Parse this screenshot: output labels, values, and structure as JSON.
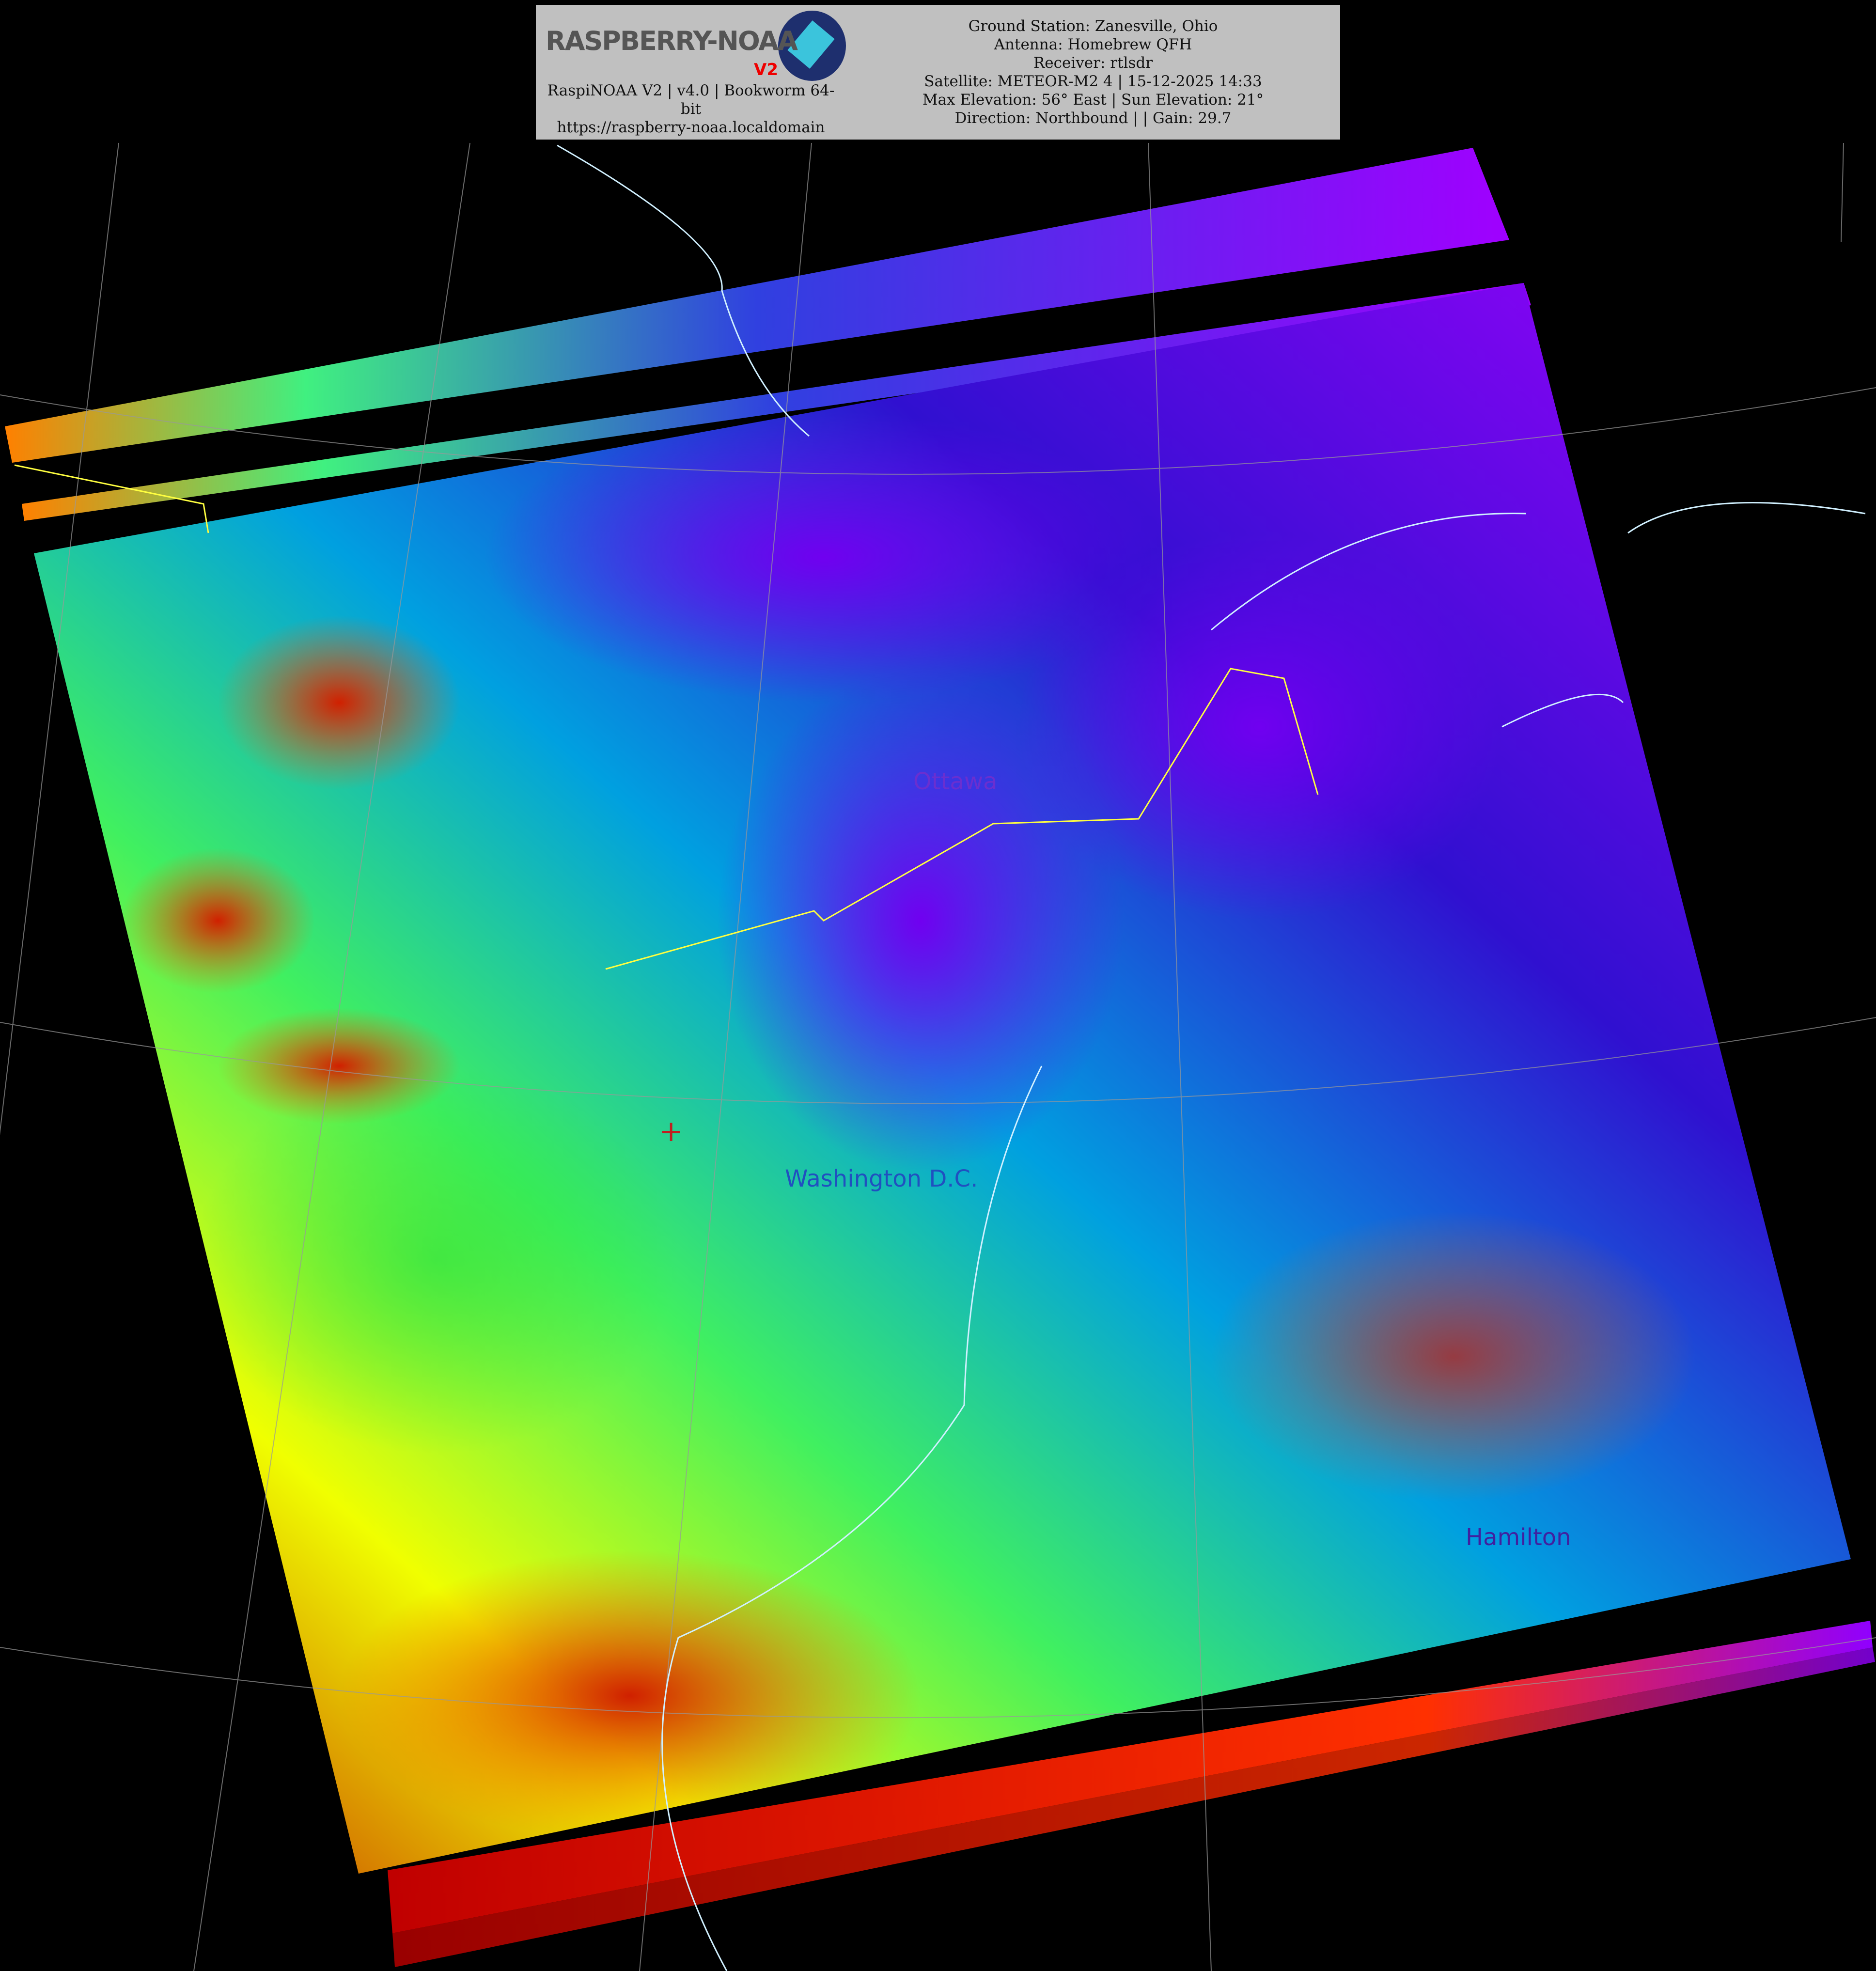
{
  "header": {
    "logo_text": "RASPBERRY-NOAA",
    "logo_suffix": "V2",
    "software": "RaspiNOAA V2 | v4.0 | Bookworm 64-bit",
    "url": "https://raspberry-noaa.localdomain",
    "lines": [
      "Ground Station: Zanesville, Ohio",
      "Antenna: Homebrew QFH",
      "Receiver: rtlsdr",
      "Satellite: METEOR-M2 4 | 15-12-2025 14:33",
      "Max Elevation: 56° East | Sun Elevation: 21°",
      "Direction: Northbound | | Gain: 29.7"
    ]
  },
  "map": {
    "labels": {
      "ottawa": "Ottawa",
      "washington": "Washington D.C.",
      "hamilton": "Hamilton"
    },
    "colors": {
      "cold": "#9b00ff",
      "mid": "#00e0a0",
      "warm": "#ffff00",
      "hot": "#d01000",
      "coast": "#d0f0ff",
      "border": "#ffff40"
    }
  }
}
